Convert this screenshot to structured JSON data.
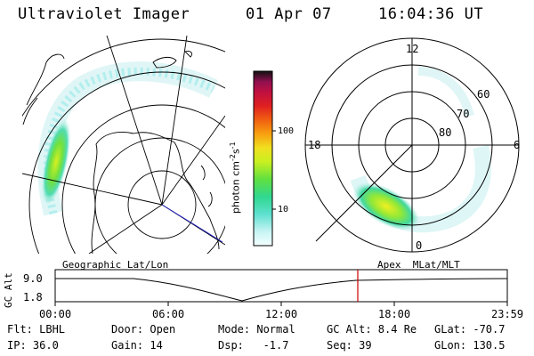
{
  "header": {
    "instrument": "Ultraviolet Imager",
    "date": "01 Apr 07",
    "time": "16:04:36 UT"
  },
  "colorbar": {
    "unit_text": "photon cm",
    "unit_exp1": "-2",
    "unit_s": "s",
    "unit_exp2": "-1",
    "ticks": [
      "100",
      "10"
    ]
  },
  "mlt_plot": {
    "hour_labels": [
      "12",
      "18",
      "6",
      "0"
    ],
    "lat_labels": [
      "60",
      "70",
      "80"
    ]
  },
  "timeline": {
    "left_label": "Geographic Lat/Lon",
    "right_label": "Apex  MLat/MLT",
    "axis_title": "GC Alt",
    "y_ticks": [
      "9.0",
      "1.8"
    ],
    "x_ticks": [
      "00:00",
      "06:00",
      "12:00",
      "18:00",
      "23:59"
    ],
    "current_time_fraction": 0.669
  },
  "info": {
    "flt": "Flt: LBHL",
    "ip": "IP: 36.0",
    "door": "Door: Open",
    "gain": "Gain: 14",
    "mode": "Mode: Normal",
    "dsp": "Dsp:   -1.7",
    "gcalt": "GC Alt: 8.4 Re",
    "seq": "Seq: 39",
    "glat": "GLat: -70.7",
    "glon": "GLon: 130.5"
  },
  "colors": {
    "colorbar_stops": [
      "#f4ffff",
      "#b8f0f0",
      "#5ee0d0",
      "#30d890",
      "#60e040",
      "#c8f020",
      "#f0e020",
      "#f8a010",
      "#f06010",
      "#e02020",
      "#c01040",
      "#901050",
      "#400030",
      "#101010"
    ],
    "accent_time_marker": "#cc0000",
    "nadir_line": "#2020c0"
  }
}
